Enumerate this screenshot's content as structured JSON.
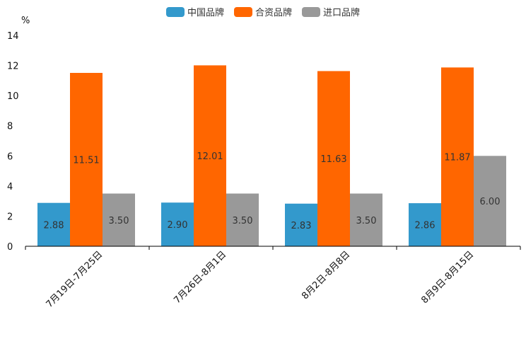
{
  "chart_data": {
    "type": "bar",
    "ylabel": "%",
    "ylim": [
      0,
      14
    ],
    "yticks": [
      0,
      2,
      4,
      6,
      8,
      10,
      12,
      14
    ],
    "legend_position": "top-center",
    "categories": [
      "7月19日-7月25日",
      "7月26日-8月1日",
      "8月2日-8月8日",
      "8月9日-8月15日"
    ],
    "series": [
      {
        "name": "中国品牌",
        "color": "#3399CC",
        "values": [
          2.88,
          2.9,
          2.83,
          2.86
        ],
        "labels": [
          "2.88",
          "2.90",
          "2.83",
          "2.86"
        ]
      },
      {
        "name": "合资品牌",
        "color": "#FF6600",
        "values": [
          11.51,
          12.01,
          11.63,
          11.87
        ],
        "labels": [
          "11.51",
          "12.01",
          "11.63",
          "11.87"
        ]
      },
      {
        "name": "进口品牌",
        "color": "#999999",
        "values": [
          3.5,
          3.5,
          3.5,
          6.0
        ],
        "labels": [
          "3.50",
          "3.50",
          "3.50",
          "6.00"
        ]
      }
    ]
  }
}
